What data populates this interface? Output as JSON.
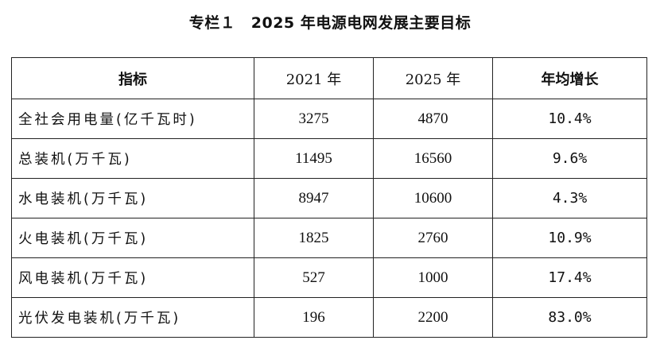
{
  "title": "专栏１　2025 年电源电网发展主要目标",
  "table": {
    "headers": [
      "指标",
      "2021 年",
      "2025 年",
      "年均增长"
    ],
    "rows": [
      [
        "全社会用电量(亿千瓦时)",
        "3275",
        "4870",
        "10.4%"
      ],
      [
        "总装机(万千瓦)",
        "11495",
        "16560",
        "9.6%"
      ],
      [
        "水电装机(万千瓦)",
        "8947",
        "10600",
        "4.3%"
      ],
      [
        "火电装机(万千瓦)",
        "1825",
        "2760",
        "10.9%"
      ],
      [
        "风电装机(万千瓦)",
        "527",
        "1000",
        "17.4%"
      ],
      [
        "光伏发电装机(万千瓦)",
        "196",
        "2200",
        "83.0%"
      ]
    ]
  }
}
